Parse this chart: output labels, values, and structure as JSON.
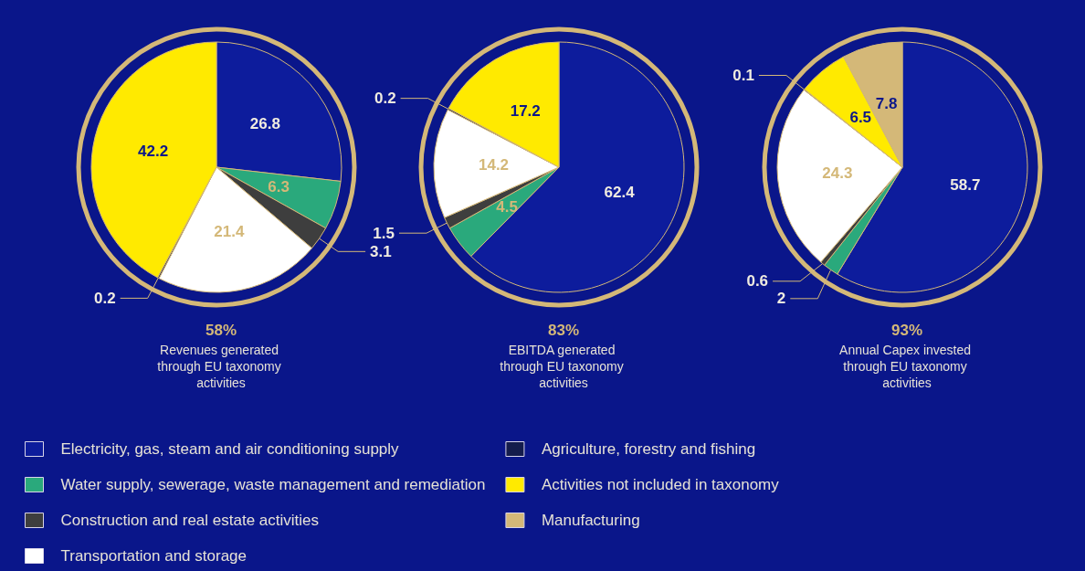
{
  "chart_data": {
    "type": "pie",
    "categories": [
      "Electricity, gas, steam and air conditioning supply",
      "Water supply, sewerage, waste management and remediation",
      "Construction and real estate activities",
      "Transportation and storage",
      "Agriculture, forestry and fishing",
      "Activities not included in taxonomy",
      "Manufacturing"
    ],
    "colors": [
      "#0d1c9c",
      "#2aa97c",
      "#3e3e3e",
      "#ffffff",
      "#141c4c",
      "#ffea00",
      "#d4b878"
    ],
    "series": [
      {
        "name": "Revenues generated through EU taxonomy activities",
        "values": [
          26.8,
          6.3,
          3.1,
          21.4,
          0.2,
          42.2,
          null
        ]
      },
      {
        "name": "EBITDA generated through EU taxonomy activities",
        "values": [
          62.4,
          4.5,
          1.5,
          14.2,
          0.2,
          17.2,
          null
        ]
      },
      {
        "name": "Annual Capex invested through EU taxonomy activities",
        "values": [
          58.7,
          2,
          0.6,
          24.3,
          0.1,
          6.5,
          7.8
        ]
      }
    ],
    "annotations": [
      "58%",
      "83%",
      "93%"
    ],
    "data_labels": true,
    "legend": "bottom"
  }
}
